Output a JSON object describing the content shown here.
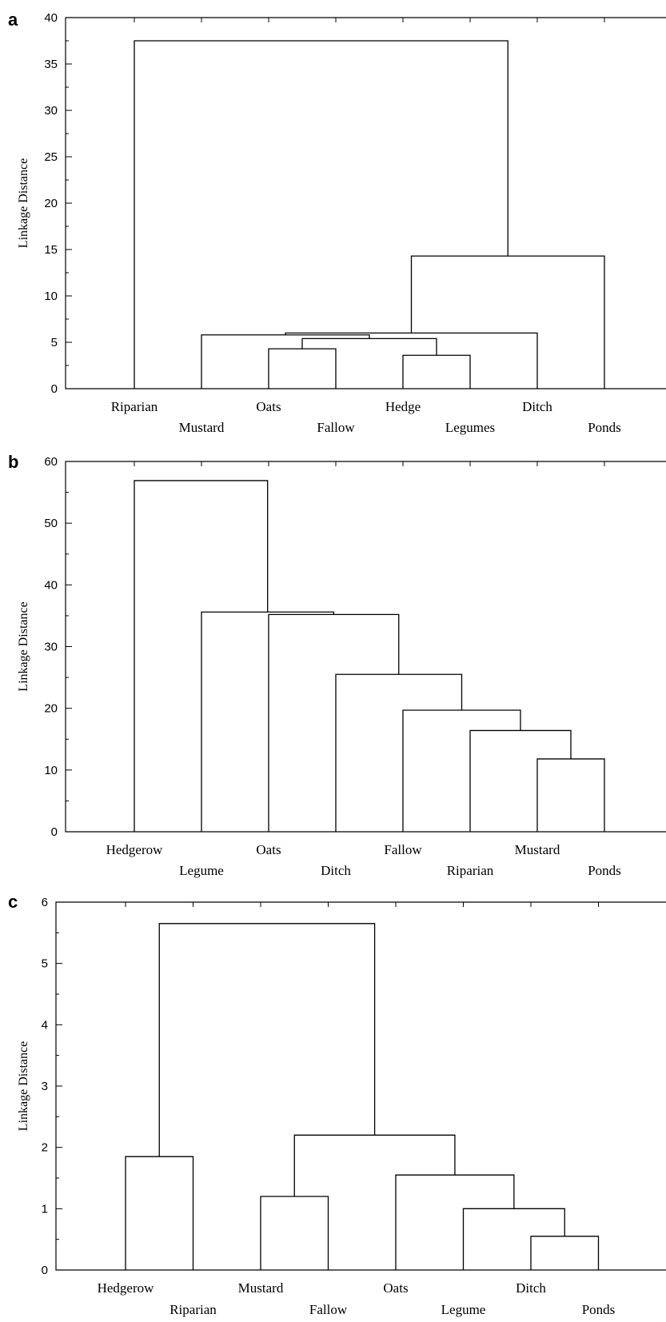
{
  "chart_data": [
    {
      "panel": "a",
      "type": "dendrogram",
      "ylabel": "Linkage Distance",
      "ylim": [
        0,
        40
      ],
      "yticks": [
        0,
        5,
        10,
        15,
        20,
        25,
        30,
        35,
        40
      ],
      "leaves": [
        "Riparian",
        "Mustard",
        "Oats",
        "Fallow",
        "Hedge",
        "Legumes",
        "Ditch",
        "Ponds"
      ],
      "merges": [
        {
          "left": 2,
          "right": 3,
          "height": 4.3,
          "label": "Oats+Fallow"
        },
        {
          "left": 4,
          "right": 5,
          "height": 3.6,
          "label": "Hedge+Legumes"
        },
        {
          "left": "Oats+Fallow",
          "right": "Hedge+Legumes",
          "height": 5.4,
          "label": "C1"
        },
        {
          "left": 1,
          "right": "C1",
          "height": 5.8,
          "label": "C2"
        },
        {
          "left": "C2",
          "right": 6,
          "height": 6.0,
          "label": "C3"
        },
        {
          "left": "C3",
          "right": 7,
          "height": 14.3,
          "label": "C4"
        },
        {
          "left": 0,
          "right": "C4",
          "height": 37.5,
          "label": "root"
        }
      ]
    },
    {
      "panel": "b",
      "type": "dendrogram",
      "ylabel": "Linkage Distance",
      "ylim": [
        0,
        60
      ],
      "yticks": [
        0,
        10,
        20,
        30,
        40,
        50,
        60
      ],
      "leaves": [
        "Hedgerow",
        "Legume",
        "Oats",
        "Ditch",
        "Fallow",
        "Riparian",
        "Mustard",
        "Ponds"
      ],
      "merges": [
        {
          "left": 6,
          "right": 7,
          "height": 11.8,
          "label": "C1"
        },
        {
          "left": 5,
          "right": "C1",
          "height": 16.4,
          "label": "C2"
        },
        {
          "left": 4,
          "right": "C2",
          "height": 19.7,
          "label": "C3"
        },
        {
          "left": 3,
          "right": "C3",
          "height": 25.5,
          "label": "C4"
        },
        {
          "left": 2,
          "right": "C4",
          "height": 35.2,
          "label": "C5"
        },
        {
          "left": 1,
          "right": "C5",
          "height": 35.6,
          "label": "C6"
        },
        {
          "left": 0,
          "right": "C6",
          "height": 56.9,
          "label": "root"
        }
      ]
    },
    {
      "panel": "c",
      "type": "dendrogram",
      "ylabel": "Linkage Distance",
      "ylim": [
        0,
        6
      ],
      "yticks": [
        0,
        1,
        2,
        3,
        4,
        5,
        6
      ],
      "leaves": [
        "Hedgerow",
        "Riparian",
        "Mustard",
        "Fallow",
        "Oats",
        "Legume",
        "Ditch",
        "Ponds"
      ],
      "merges": [
        {
          "left": 0,
          "right": 1,
          "height": 1.85,
          "label": "C1"
        },
        {
          "left": 2,
          "right": 3,
          "height": 1.2,
          "label": "C2"
        },
        {
          "left": 6,
          "right": 7,
          "height": 0.55,
          "label": "C3"
        },
        {
          "left": 5,
          "right": "C3",
          "height": 1.0,
          "label": "C4"
        },
        {
          "left": 4,
          "right": "C4",
          "height": 1.55,
          "label": "C5"
        },
        {
          "left": "C2",
          "right": "C5",
          "height": 2.2,
          "label": "C6"
        },
        {
          "left": "C1",
          "right": "C6",
          "height": 5.65,
          "label": "root"
        }
      ]
    }
  ]
}
